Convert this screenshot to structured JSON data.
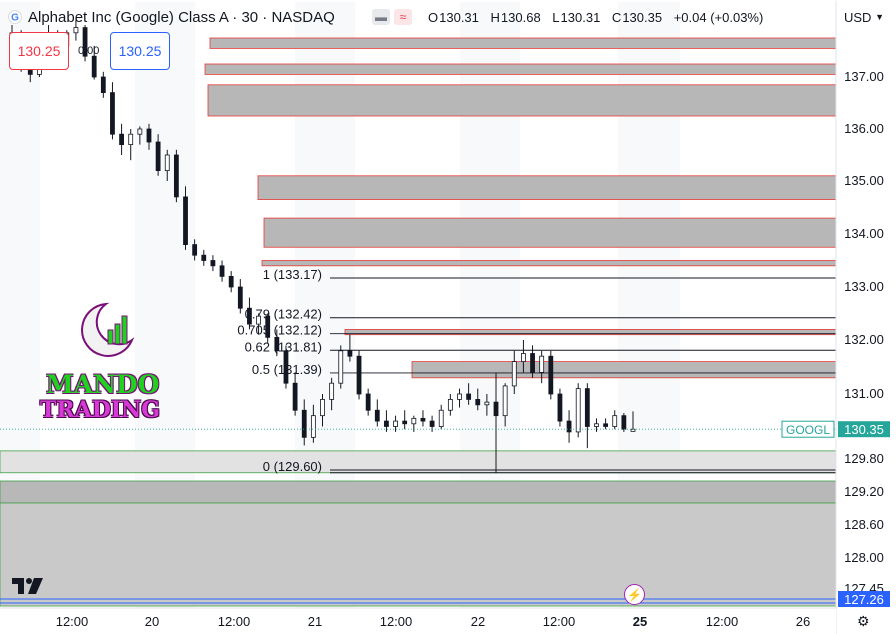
{
  "header": {
    "title": "Alphabet Inc (Google) Class A · 30 · NASDAQ",
    "ohlc": {
      "o_label": "O",
      "o": "130.31",
      "h_label": "H",
      "h": "130.68",
      "l_label": "L",
      "l": "130.31",
      "c_label": "C",
      "c": "130.35",
      "change": "+0.04 (+0.03%)"
    },
    "currency": "USD"
  },
  "trade": {
    "sell_price": "130.25",
    "spread": "0.00",
    "buy_price": "130.25"
  },
  "logo": {
    "line1": "MANDO",
    "line2": "TRADING"
  },
  "colors": {
    "up": "#131722",
    "down": "#131722",
    "zone_fill": "#b7b7b7",
    "zone_border": "#e53935",
    "demand_border": "#43a047",
    "last_price_label": "#26a69a",
    "blue_label": "#2962ff"
  },
  "chart_data": {
    "type": "candlestick",
    "symbol": "GOOGL",
    "last_price": 130.35,
    "last_price_label": "130.35",
    "bottom_label": "127.26",
    "ylim": [
      127.0,
      137.9
    ],
    "y_ticks": [
      "137.00",
      "136.00",
      "135.00",
      "134.00",
      "133.00",
      "132.00",
      "131.00",
      "129.80",
      "129.20",
      "128.60",
      "128.00",
      "127.45"
    ],
    "x_ticks": [
      "12:00",
      "20",
      "12:00",
      "21",
      "12:00",
      "22",
      "12:00",
      "25",
      "12:00",
      "26"
    ],
    "fib_levels": [
      {
        "label": "1 (133.17)",
        "value": 133.17
      },
      {
        "label": "0.79 (132.42)",
        "value": 132.42
      },
      {
        "label": "0.705 (132.12)",
        "value": 132.12
      },
      {
        "label": "0.62 (131.81)",
        "value": 131.81
      },
      {
        "label": "0.5 (131.39)",
        "value": 131.39
      },
      {
        "label": "0 (129.60)",
        "value": 129.6
      }
    ],
    "candles": [
      [
        137.7,
        138.0,
        137.45,
        137.85
      ],
      [
        137.85,
        137.9,
        137.1,
        137.2
      ],
      [
        137.2,
        137.3,
        136.9,
        137.05
      ],
      [
        137.05,
        137.6,
        137.0,
        137.5
      ],
      [
        137.5,
        138.0,
        137.4,
        137.8
      ],
      [
        137.8,
        137.9,
        137.5,
        137.6
      ],
      [
        137.6,
        137.9,
        137.4,
        137.85
      ],
      [
        137.85,
        138.1,
        137.7,
        137.95
      ],
      [
        137.95,
        138.0,
        137.3,
        137.4
      ],
      [
        137.4,
        137.6,
        136.95,
        137.0
      ],
      [
        137.0,
        137.1,
        136.6,
        136.7
      ],
      [
        136.7,
        136.9,
        135.8,
        135.9
      ],
      [
        135.9,
        136.1,
        135.5,
        135.7
      ],
      [
        135.7,
        136.0,
        135.4,
        135.9
      ],
      [
        135.9,
        136.05,
        135.7,
        136.0
      ],
      [
        136.0,
        136.1,
        135.6,
        135.75
      ],
      [
        135.75,
        135.9,
        135.1,
        135.2
      ],
      [
        135.2,
        135.6,
        135.0,
        135.5
      ],
      [
        135.5,
        135.6,
        134.6,
        134.7
      ],
      [
        134.7,
        134.9,
        133.7,
        133.8
      ],
      [
        133.8,
        133.9,
        133.5,
        133.6
      ],
      [
        133.6,
        133.7,
        133.4,
        133.5
      ],
      [
        133.5,
        133.6,
        133.3,
        133.4
      ],
      [
        133.4,
        133.5,
        133.1,
        133.2
      ],
      [
        133.2,
        133.3,
        132.9,
        133.0
      ],
      [
        133.0,
        133.15,
        132.5,
        132.6
      ],
      [
        132.6,
        132.8,
        132.2,
        132.3
      ],
      [
        132.3,
        132.5,
        132.1,
        132.45
      ],
      [
        132.45,
        132.5,
        131.95,
        132.05
      ],
      [
        132.05,
        132.2,
        131.7,
        131.8
      ],
      [
        131.8,
        131.9,
        131.1,
        131.2
      ],
      [
        131.2,
        131.4,
        130.6,
        130.7
      ],
      [
        130.7,
        130.9,
        130.05,
        130.2
      ],
      [
        130.2,
        130.8,
        130.1,
        130.6
      ],
      [
        130.6,
        131.0,
        130.4,
        130.9
      ],
      [
        130.9,
        131.3,
        130.7,
        131.2
      ],
      [
        131.2,
        131.9,
        131.1,
        131.8
      ],
      [
        131.8,
        132.1,
        131.6,
        131.7
      ],
      [
        131.7,
        131.8,
        130.9,
        131.0
      ],
      [
        131.0,
        131.1,
        130.6,
        130.7
      ],
      [
        130.7,
        130.9,
        130.4,
        130.5
      ],
      [
        130.5,
        130.7,
        130.3,
        130.4
      ],
      [
        130.4,
        130.6,
        130.3,
        130.5
      ],
      [
        130.5,
        130.7,
        130.35,
        130.45
      ],
      [
        130.45,
        130.6,
        130.3,
        130.55
      ],
      [
        130.55,
        130.7,
        130.4,
        130.5
      ],
      [
        130.5,
        130.6,
        130.3,
        130.4
      ],
      [
        130.4,
        130.8,
        130.35,
        130.7
      ],
      [
        130.7,
        131.0,
        130.6,
        130.9
      ],
      [
        130.9,
        131.1,
        130.75,
        131.0
      ],
      [
        131.0,
        131.2,
        130.8,
        130.9
      ],
      [
        130.9,
        131.1,
        130.7,
        130.8
      ],
      [
        130.8,
        131.0,
        130.6,
        130.85
      ],
      [
        130.85,
        131.4,
        129.55,
        130.6
      ],
      [
        130.6,
        131.2,
        130.4,
        131.15
      ],
      [
        131.15,
        131.8,
        131.0,
        131.6
      ],
      [
        131.6,
        132.0,
        131.4,
        131.75
      ],
      [
        131.75,
        131.9,
        131.3,
        131.4
      ],
      [
        131.4,
        131.8,
        131.2,
        131.7
      ],
      [
        131.7,
        131.8,
        130.9,
        131.0
      ],
      [
        131.0,
        131.1,
        130.4,
        130.5
      ],
      [
        130.5,
        130.7,
        130.1,
        130.3
      ],
      [
        130.3,
        131.2,
        130.2,
        131.1
      ],
      [
        131.1,
        131.2,
        130.0,
        130.4
      ],
      [
        130.4,
        130.55,
        130.3,
        130.45
      ],
      [
        130.45,
        130.55,
        130.35,
        130.4
      ],
      [
        130.4,
        130.7,
        130.35,
        130.6
      ],
      [
        130.6,
        130.65,
        130.3,
        130.35
      ],
      [
        130.31,
        130.68,
        130.31,
        130.35
      ]
    ],
    "supply_zones": [
      {
        "top": 137.75,
        "bottom": 137.55
      },
      {
        "top": 137.25,
        "bottom": 137.05
      },
      {
        "top": 136.85,
        "bottom": 136.25
      },
      {
        "top": 135.1,
        "bottom": 134.65
      },
      {
        "top": 134.3,
        "bottom": 133.75
      },
      {
        "top": 133.5,
        "bottom": 133.4
      },
      {
        "top": 132.2,
        "bottom": 132.1
      },
      {
        "top": 131.6,
        "bottom": 131.3
      }
    ],
    "demand_zones": [
      {
        "top": 129.95,
        "bottom": 129.55,
        "fill": "#e2e2e2"
      },
      {
        "top": 129.4,
        "bottom": 129.0,
        "fill": "#b8b8b8"
      },
      {
        "top": 129.0,
        "bottom": 127.0,
        "fill": "#c9c9c9"
      }
    ]
  }
}
